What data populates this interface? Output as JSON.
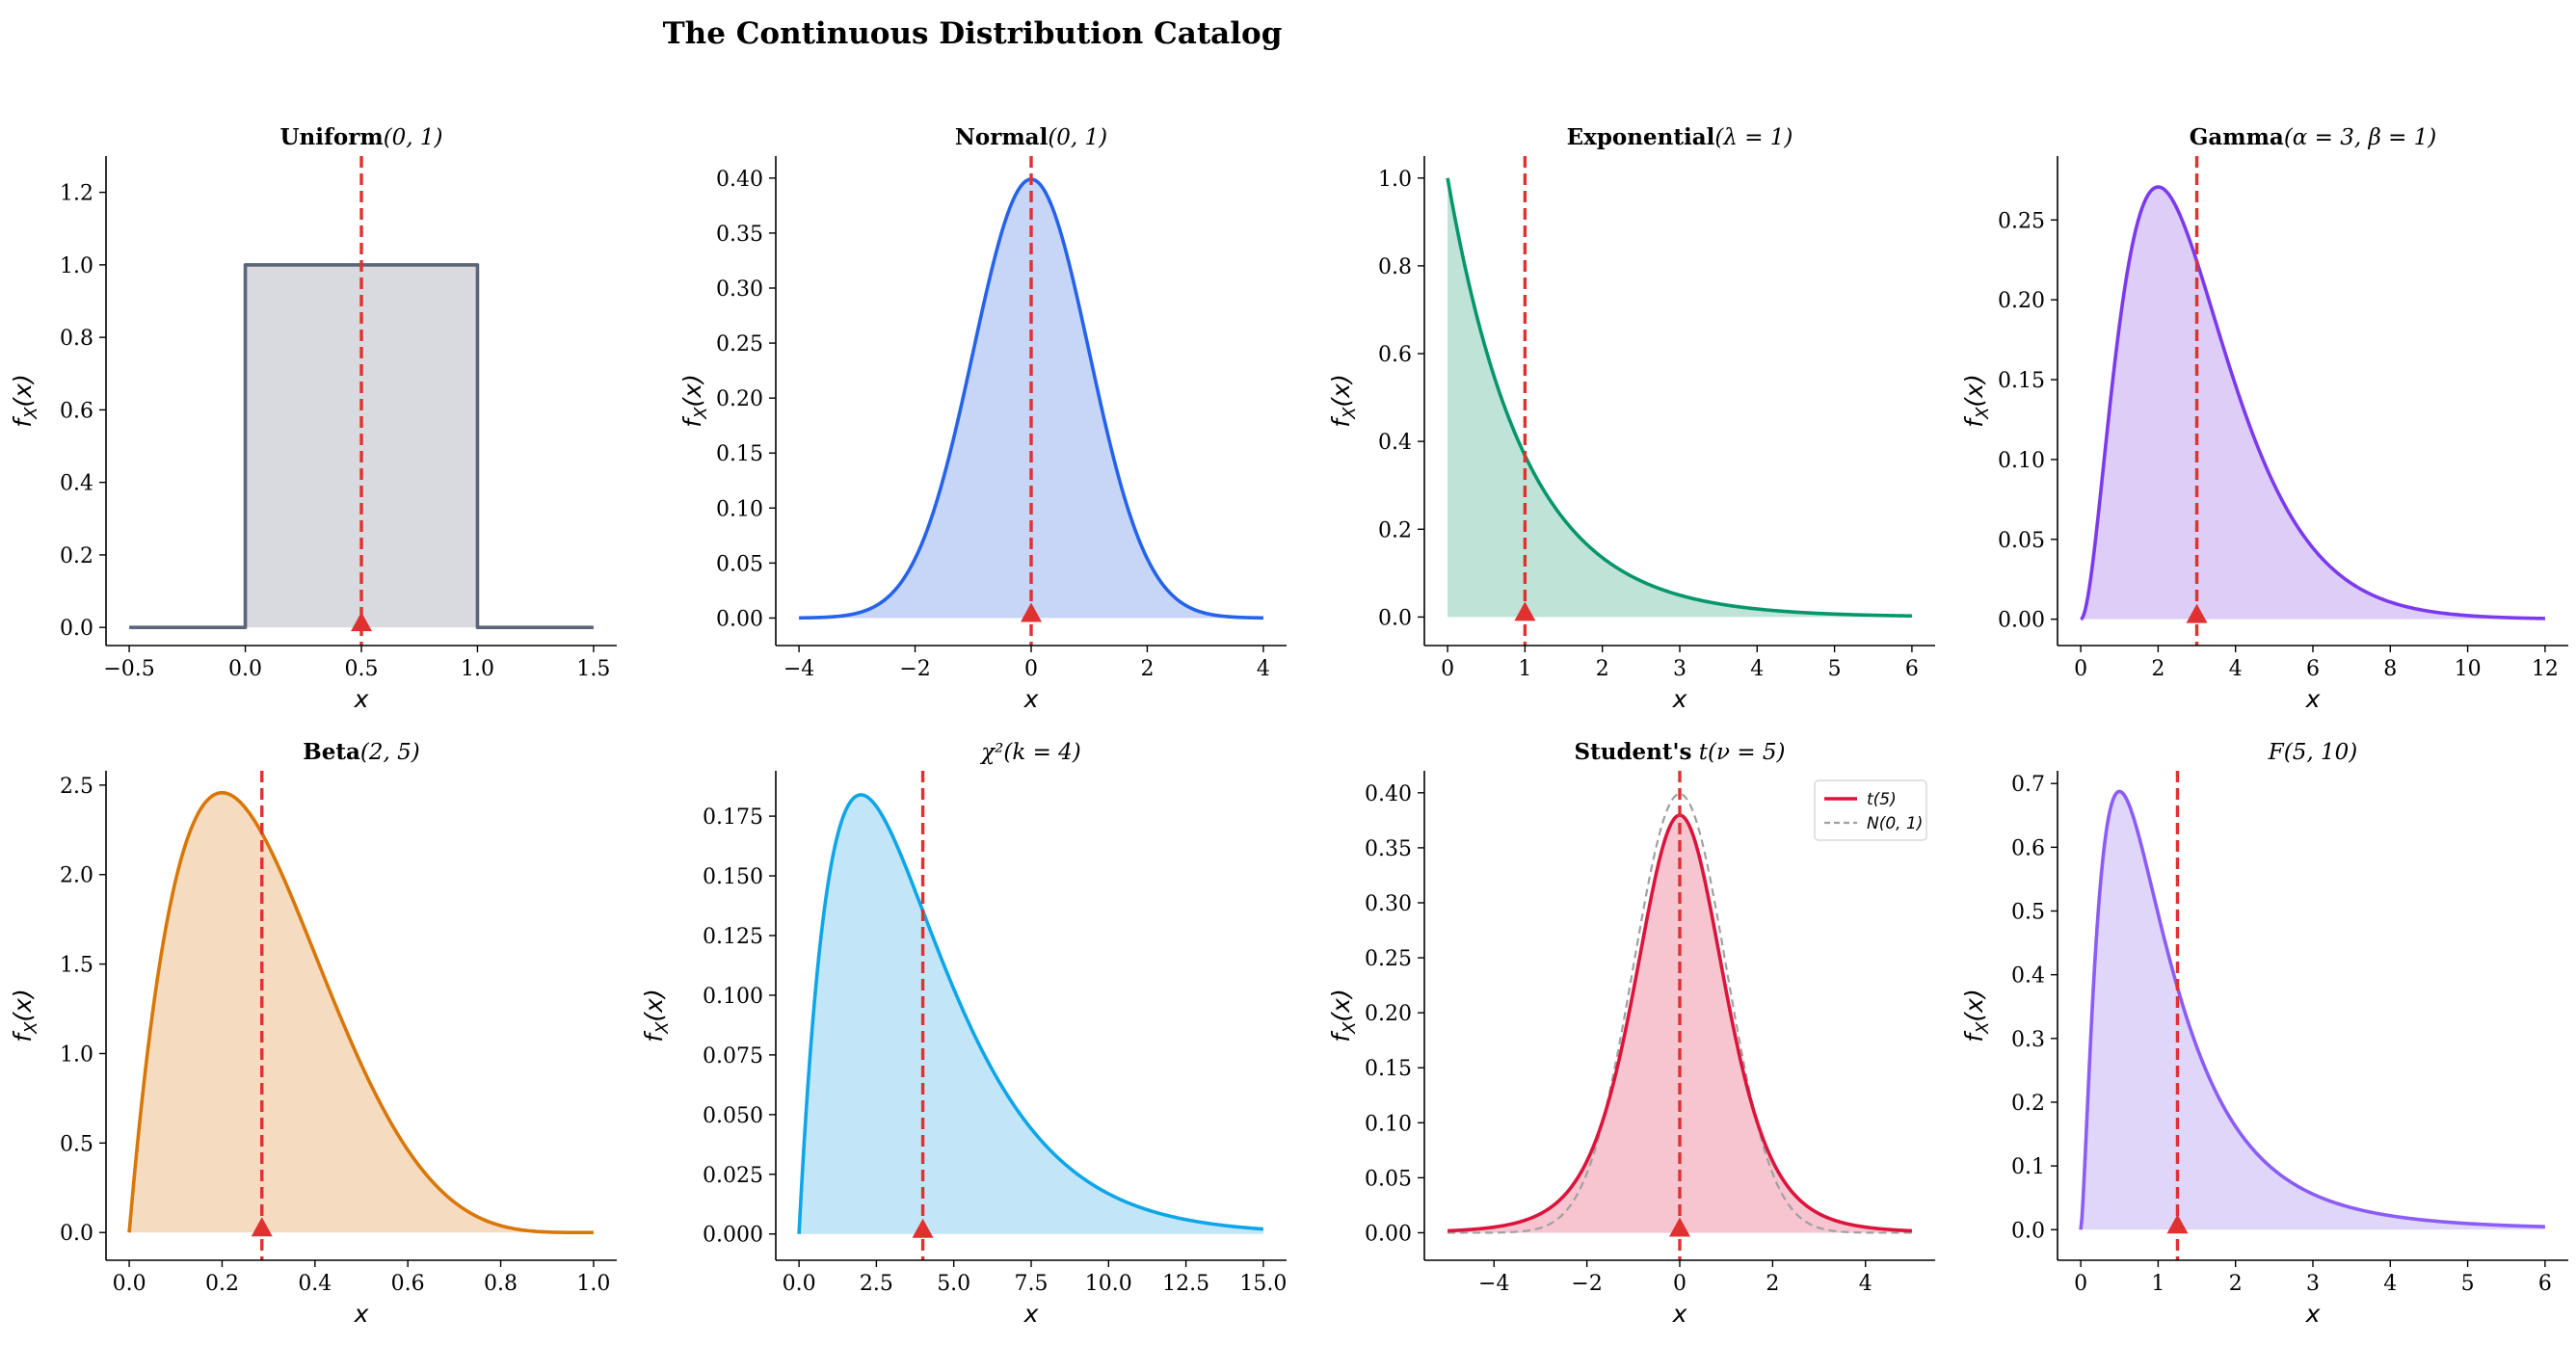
{
  "figure": {
    "title": "The Continuous Distribution Catalog"
  },
  "colors": {
    "mean_line": "#e03131",
    "mean_marker": "#e03131",
    "axis": "#000000"
  },
  "chart_data": [
    {
      "id": "uniform",
      "type": "area",
      "title_bold": "Uniform",
      "title_rest": "(0, 1)",
      "pdf": "uniform",
      "params": {
        "a": 0,
        "b": 1
      },
      "x_range": [
        -0.5,
        1.5
      ],
      "xlim": [
        -0.6,
        1.6
      ],
      "ylim": [
        -0.05,
        1.3
      ],
      "xticks": [
        -0.5,
        0.0,
        0.5,
        1.0,
        1.5
      ],
      "xtick_labels": [
        "−0.5",
        "0.0",
        "0.5",
        "1.0",
        "1.5"
      ],
      "yticks": [
        0.0,
        0.2,
        0.4,
        0.6,
        0.8,
        1.0,
        1.2
      ],
      "ytick_labels": [
        "0.0",
        "0.2",
        "0.4",
        "0.6",
        "0.8",
        "1.0",
        "1.2"
      ],
      "xlabel": "x",
      "ylabel": "f_X(x)",
      "mean": 0.5,
      "line_color": "#5b6478",
      "fill_color": "#d9dadf",
      "grid": false
    },
    {
      "id": "normal",
      "type": "area",
      "title_bold": "Normal",
      "title_rest": "(0, 1)",
      "pdf": "normal",
      "params": {
        "mu": 0,
        "sigma": 1
      },
      "x_range": [
        -4,
        4
      ],
      "xlim": [
        -4.4,
        4.4
      ],
      "ylim": [
        -0.025,
        0.42
      ],
      "xticks": [
        -4,
        -2,
        0,
        2,
        4
      ],
      "xtick_labels": [
        "−4",
        "−2",
        "0",
        "2",
        "4"
      ],
      "yticks": [
        0.0,
        0.05,
        0.1,
        0.15,
        0.2,
        0.25,
        0.3,
        0.35,
        0.4
      ],
      "ytick_labels": [
        "0.00",
        "0.05",
        "0.10",
        "0.15",
        "0.20",
        "0.25",
        "0.30",
        "0.35",
        "0.40"
      ],
      "xlabel": "x",
      "ylabel": "f_X(x)",
      "mean": 0,
      "line_color": "#2563eb",
      "fill_color": "#c7d5f7",
      "grid": false
    },
    {
      "id": "exponential",
      "type": "area",
      "title_bold": "Exponential",
      "title_rest": "(λ = 1)",
      "pdf": "exponential",
      "params": {
        "lambda": 1
      },
      "x_range": [
        0,
        6
      ],
      "xlim": [
        -0.3,
        6.3
      ],
      "ylim": [
        -0.065,
        1.05
      ],
      "xticks": [
        0,
        1,
        2,
        3,
        4,
        5,
        6
      ],
      "xtick_labels": [
        "0",
        "1",
        "2",
        "3",
        "4",
        "5",
        "6"
      ],
      "yticks": [
        0.0,
        0.2,
        0.4,
        0.6,
        0.8,
        1.0
      ],
      "ytick_labels": [
        "0.0",
        "0.2",
        "0.4",
        "0.6",
        "0.8",
        "1.0"
      ],
      "xlabel": "x",
      "ylabel": "f_X(x)",
      "mean": 1,
      "line_color": "#059669",
      "fill_color": "#bfe3d6",
      "grid": false
    },
    {
      "id": "gamma",
      "type": "area",
      "title_bold": "Gamma",
      "title_rest": "(α = 3, β = 1)",
      "pdf": "gamma",
      "params": {
        "alpha": 3,
        "beta": 1
      },
      "x_range": [
        0,
        12
      ],
      "xlim": [
        -0.6,
        12.6
      ],
      "ylim": [
        -0.0165,
        0.29
      ],
      "xticks": [
        0,
        2,
        4,
        6,
        8,
        10,
        12
      ],
      "xtick_labels": [
        "0",
        "2",
        "4",
        "6",
        "8",
        "10",
        "12"
      ],
      "yticks": [
        0.0,
        0.05,
        0.1,
        0.15,
        0.2,
        0.25
      ],
      "ytick_labels": [
        "0.00",
        "0.05",
        "0.10",
        "0.15",
        "0.20",
        "0.25"
      ],
      "xlabel": "x",
      "ylabel": "f_X(x)",
      "mean": 3,
      "line_color": "#7c3aed",
      "fill_color": "#ddcdf7",
      "grid": false
    },
    {
      "id": "beta",
      "type": "area",
      "title_bold": "Beta",
      "title_rest": "(2, 5)",
      "pdf": "beta",
      "params": {
        "a": 2,
        "b": 5
      },
      "x_range": [
        0,
        1
      ],
      "xlim": [
        -0.05,
        1.05
      ],
      "ylim": [
        -0.155,
        2.58
      ],
      "xticks": [
        0.0,
        0.2,
        0.4,
        0.6,
        0.8,
        1.0
      ],
      "xtick_labels": [
        "0.0",
        "0.2",
        "0.4",
        "0.6",
        "0.8",
        "1.0"
      ],
      "yticks": [
        0.0,
        0.5,
        1.0,
        1.5,
        2.0,
        2.5
      ],
      "ytick_labels": [
        "0.0",
        "0.5",
        "1.0",
        "1.5",
        "2.0",
        "2.5"
      ],
      "xlabel": "x",
      "ylabel": "f_X(x)",
      "mean": 0.2857,
      "line_color": "#d97706",
      "fill_color": "#f5dbc0",
      "grid": false
    },
    {
      "id": "chi2",
      "type": "area",
      "title_bold": "",
      "title_rest": "χ²(k = 4)",
      "pdf": "chi2",
      "params": {
        "k": 4
      },
      "x_range": [
        0,
        15
      ],
      "xlim": [
        -0.75,
        15.75
      ],
      "ylim": [
        -0.011,
        0.194
      ],
      "xticks": [
        0,
        2.5,
        5,
        7.5,
        10,
        12.5,
        15
      ],
      "xtick_labels": [
        "0.0",
        "2.5",
        "5.0",
        "7.5",
        "10.0",
        "12.5",
        "15.0"
      ],
      "yticks": [
        0.0,
        0.025,
        0.05,
        0.075,
        0.1,
        0.125,
        0.15,
        0.175
      ],
      "ytick_labels": [
        "0.000",
        "0.025",
        "0.050",
        "0.075",
        "0.100",
        "0.125",
        "0.150",
        "0.175"
      ],
      "xlabel": "x",
      "ylabel": "f_X(x)",
      "mean": 4,
      "line_color": "#0ea5e9",
      "fill_color": "#c2e6f7",
      "grid": false
    },
    {
      "id": "student_t",
      "type": "area",
      "title_bold": "Student's",
      "title_rest": " t(ν = 5)",
      "pdf": "t",
      "params": {
        "nu": 5
      },
      "x_range": [
        -5,
        5
      ],
      "xlim": [
        -5.5,
        5.5
      ],
      "ylim": [
        -0.025,
        0.42
      ],
      "xticks": [
        -4,
        -2,
        0,
        2,
        4
      ],
      "xtick_labels": [
        "−4",
        "−2",
        "0",
        "2",
        "4"
      ],
      "yticks": [
        0.0,
        0.05,
        0.1,
        0.15,
        0.2,
        0.25,
        0.3,
        0.35,
        0.4
      ],
      "ytick_labels": [
        "0.00",
        "0.05",
        "0.10",
        "0.15",
        "0.20",
        "0.25",
        "0.30",
        "0.35",
        "0.40"
      ],
      "xlabel": "x",
      "ylabel": "f_X(x)",
      "mean": 0,
      "line_color": "#dc143c",
      "fill_color": "#f6c5d0",
      "grid": false,
      "overlay": {
        "pdf": "normal",
        "params": {
          "mu": 0,
          "sigma": 1
        },
        "color": "#a0a0a0"
      },
      "legend": {
        "position": "top-right",
        "items": [
          "t(5)",
          "N(0, 1)"
        ]
      }
    },
    {
      "id": "f_dist",
      "type": "area",
      "title_bold": "",
      "title_rest": "F(5, 10)",
      "pdf": "f",
      "params": {
        "d1": 5,
        "d2": 10
      },
      "x_range": [
        0,
        6
      ],
      "xlim": [
        -0.3,
        6.3
      ],
      "ylim": [
        -0.048,
        0.72
      ],
      "xticks": [
        0,
        1,
        2,
        3,
        4,
        5,
        6
      ],
      "xtick_labels": [
        "0",
        "1",
        "2",
        "3",
        "4",
        "5",
        "6"
      ],
      "yticks": [
        0.0,
        0.1,
        0.2,
        0.3,
        0.4,
        0.5,
        0.6,
        0.7
      ],
      "ytick_labels": [
        "0.0",
        "0.1",
        "0.2",
        "0.3",
        "0.4",
        "0.5",
        "0.6",
        "0.7"
      ],
      "xlabel": "x",
      "ylabel": "f_X(x)",
      "mean": 1.25,
      "line_color": "#8b5cf6",
      "fill_color": "#e0d6fa",
      "grid": false
    }
  ]
}
